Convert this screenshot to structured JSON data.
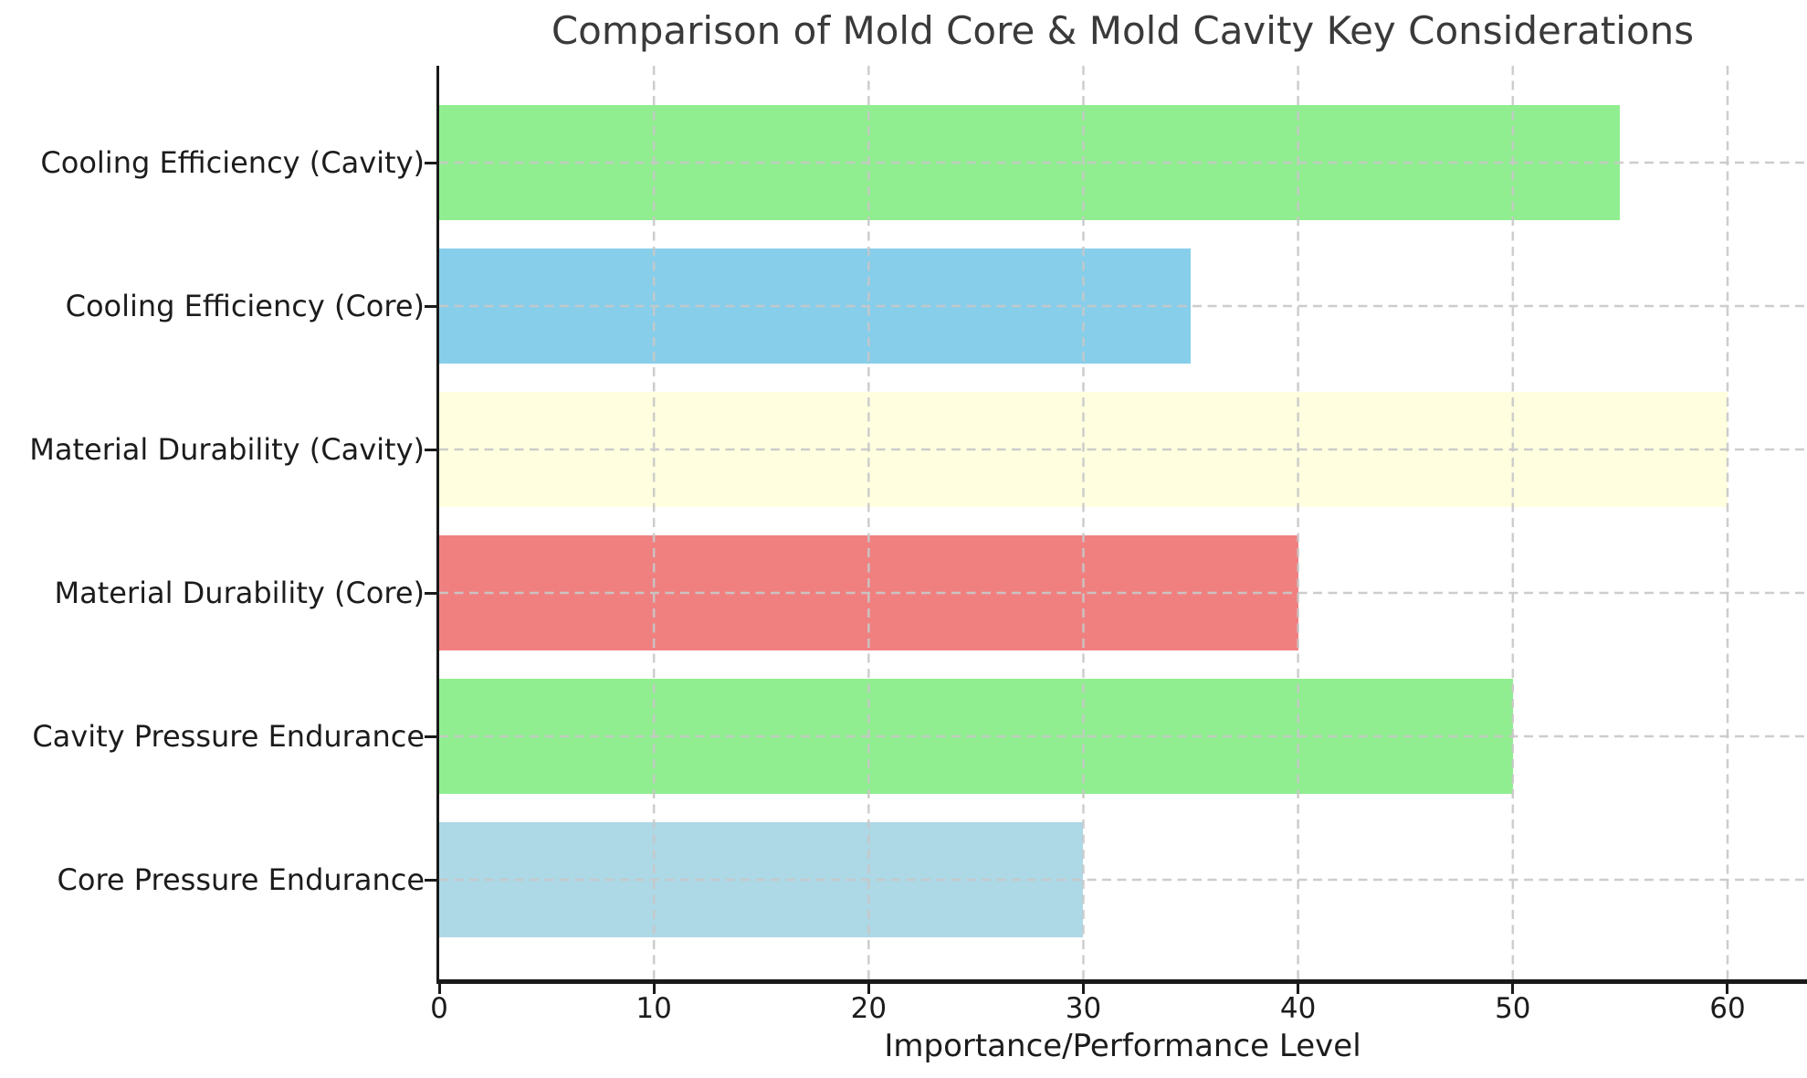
{
  "chart_data": {
    "type": "bar",
    "orientation": "horizontal",
    "title": "Comparison of Mold Core & Mold Cavity Key Considerations",
    "xlabel": "Importance/Performance Level",
    "ylabel": "",
    "categories": [
      "Cooling Efficiency (Cavity)",
      "Cooling Efficiency (Core)",
      "Material Durability (Cavity)",
      "Material Durability (Core)",
      "Cavity Pressure Endurance",
      "Core Pressure Endurance"
    ],
    "values": [
      55,
      35,
      60,
      40,
      50,
      30
    ],
    "bar_colors": [
      "#90EE90",
      "#87CEEB",
      "#FFFFE0",
      "#F08080",
      "#90EE90",
      "#ADD8E6"
    ],
    "xticks": [
      0,
      10,
      20,
      30,
      40,
      50,
      60
    ],
    "xlim": [
      0,
      63.7
    ],
    "grid": true,
    "grid_style": "dashed",
    "legend": false,
    "colors": {
      "title": "#3A3A3A",
      "axis_text": "#1C1C1C",
      "spine": "#1A1A1A",
      "grid": "#C8C8C8"
    }
  }
}
